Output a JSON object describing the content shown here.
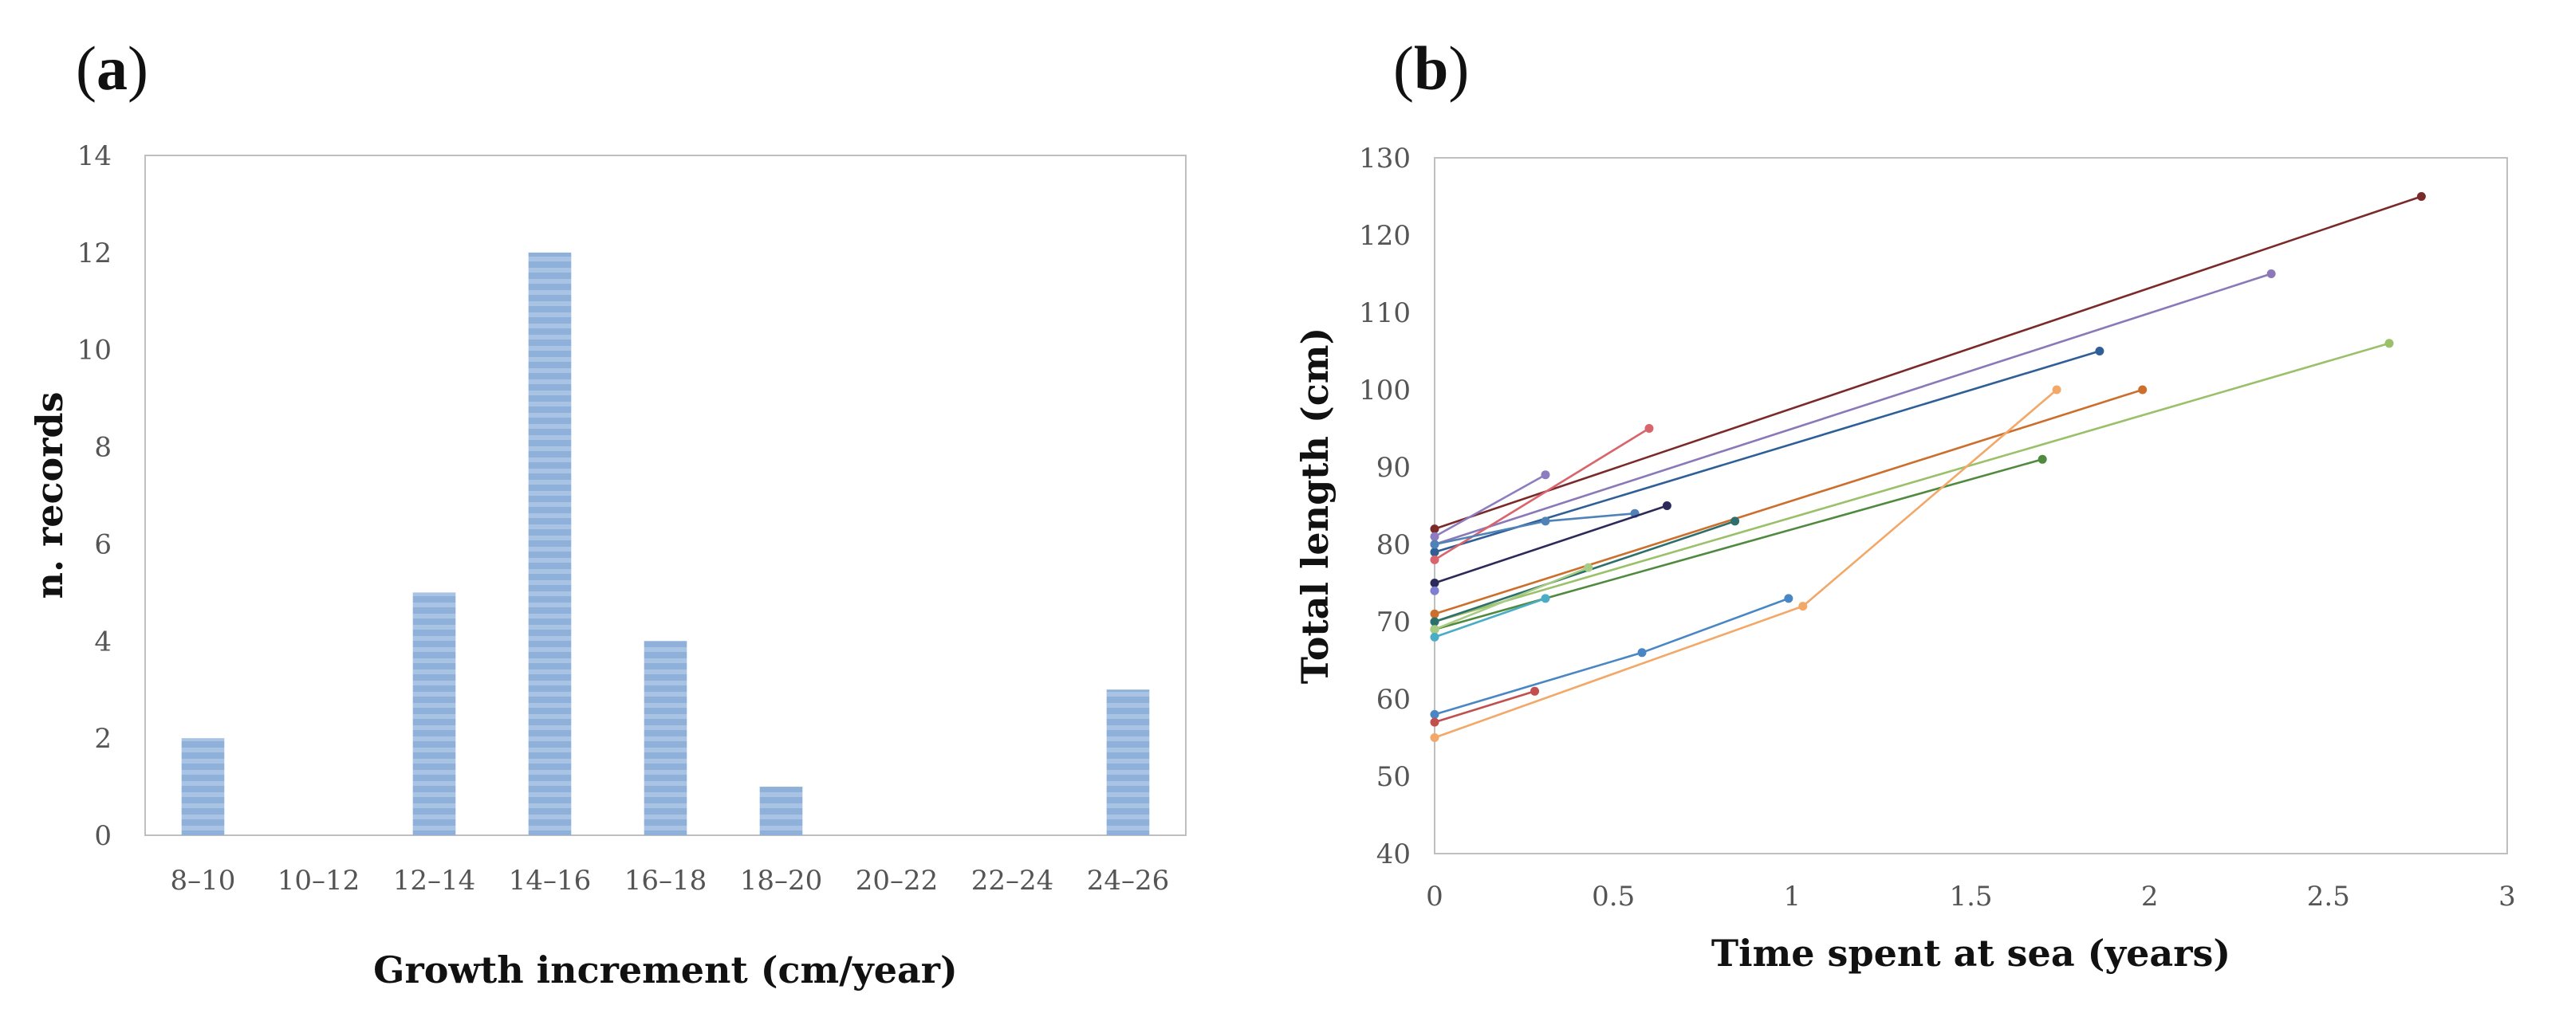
{
  "chart_data": [
    {
      "type": "bar",
      "panel_label": "(a)",
      "title": "",
      "categories": [
        "8–10",
        "10–12",
        "12–14",
        "14–16",
        "16–18",
        "18–20",
        "20–22",
        "22–24",
        "24–26"
      ],
      "values": [
        2,
        0,
        5,
        12,
        4,
        1,
        0,
        0,
        3
      ],
      "xlabel": "Growth increment (cm/year)",
      "ylabel": "n. records",
      "ylim": [
        0,
        14
      ],
      "yticks": [
        "0",
        "2",
        "4",
        "6",
        "8",
        "10",
        "12",
        "14"
      ],
      "grid": false,
      "bar_color": "#8fb0d9",
      "bar_stripe_color": "#a9c3e4"
    },
    {
      "type": "line",
      "panel_label": "(b)",
      "title": "",
      "xlabel": "Time spent at sea (years)",
      "ylabel": "Total length (cm)",
      "xlim": [
        0,
        3
      ],
      "ylim": [
        40,
        130
      ],
      "xticks": [
        "0",
        "0.5",
        "1",
        "1.5",
        "2",
        "2.5",
        "3"
      ],
      "yticks": [
        "40",
        "50",
        "60",
        "70",
        "80",
        "90",
        "100",
        "110",
        "120",
        "130"
      ],
      "grid": false,
      "series": [
        {
          "color": "#7b2a2a",
          "points": [
            [
              0,
              82
            ],
            [
              2.76,
              125
            ]
          ]
        },
        {
          "color": "#8a78b8",
          "points": [
            [
              0,
              80
            ],
            [
              2.34,
              115
            ]
          ]
        },
        {
          "color": "#2f5f97",
          "points": [
            [
              0,
              79
            ],
            [
              1.86,
              105
            ]
          ]
        },
        {
          "color": "#cc6e2c",
          "points": [
            [
              0,
              71
            ],
            [
              1.98,
              100
            ]
          ]
        },
        {
          "color": "#9ac069",
          "points": [
            [
              0,
              70
            ],
            [
              2.67,
              106
            ]
          ]
        },
        {
          "color": "#4f8a3f",
          "points": [
            [
              0,
              69
            ],
            [
              1.7,
              91
            ]
          ]
        },
        {
          "color": "#f2a868",
          "points": [
            [
              0,
              55
            ],
            [
              1.03,
              72
            ],
            [
              1.74,
              100
            ]
          ]
        },
        {
          "color": "#4a86c4",
          "points": [
            [
              0,
              58
            ],
            [
              0.58,
              66
            ],
            [
              0.99,
              73
            ]
          ]
        },
        {
          "color": "#c0504d",
          "points": [
            [
              0,
              57
            ],
            [
              0.28,
              61
            ]
          ]
        },
        {
          "color": "#d9646b",
          "points": [
            [
              0,
              78
            ],
            [
              0.6,
              95
            ]
          ]
        },
        {
          "color": "#8d7dc0",
          "points": [
            [
              0,
              81
            ],
            [
              0.31,
              89
            ]
          ]
        },
        {
          "color": "#4f83b8",
          "points": [
            [
              0,
              80
            ],
            [
              0.31,
              83
            ],
            [
              0.56,
              84
            ]
          ]
        },
        {
          "color": "#2c2a5a",
          "points": [
            [
              0,
              75
            ],
            [
              0.65,
              85
            ]
          ]
        },
        {
          "color": "#2d6f6a",
          "points": [
            [
              0,
              70
            ],
            [
              0.84,
              83
            ]
          ]
        },
        {
          "color": "#a9cc85",
          "points": [
            [
              0,
              69
            ],
            [
              0.43,
              77
            ]
          ]
        },
        {
          "color": "#4bacc6",
          "points": [
            [
              0,
              68
            ],
            [
              0.31,
              73
            ]
          ]
        },
        {
          "color": "#7f7fcf",
          "points": [
            [
              0,
              74
            ]
          ]
        }
      ]
    }
  ]
}
